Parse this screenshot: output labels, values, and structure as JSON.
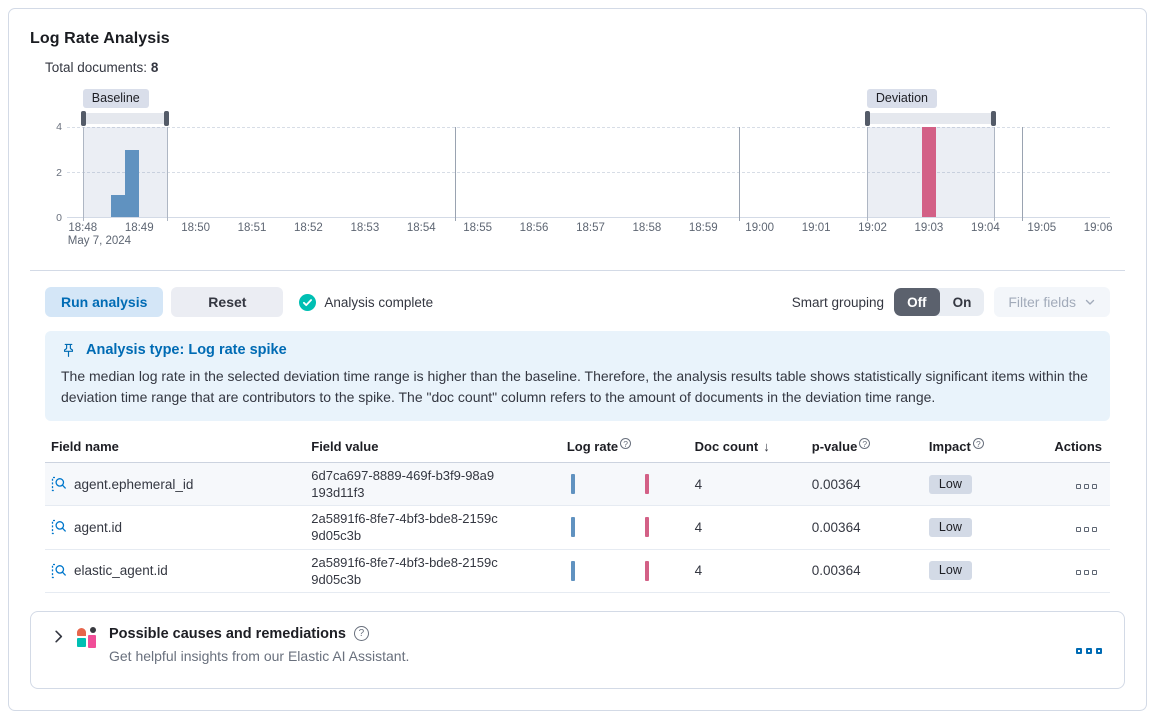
{
  "panel": {
    "title": "Log Rate Analysis",
    "total_documents_label": "Total documents:",
    "total_documents_value": "8"
  },
  "chart_data": {
    "type": "bar",
    "x_tick_labels": [
      "18:48",
      "18:49",
      "18:50",
      "18:51",
      "18:52",
      "18:53",
      "18:54",
      "18:55",
      "18:56",
      "18:57",
      "18:58",
      "18:59",
      "19:00",
      "19:01",
      "19:02",
      "19:03",
      "19:04",
      "19:05",
      "19:06"
    ],
    "x_date_label": "May 7, 2024",
    "ylim": [
      0,
      4
    ],
    "y_ticks": [
      0,
      2,
      4
    ],
    "bar_width_min": 0.25,
    "bars": [
      {
        "time": "18:48:30",
        "t_min": 0.5,
        "value": 1,
        "series": "baseline"
      },
      {
        "time": "18:48:45",
        "t_min": 0.75,
        "value": 3,
        "series": "baseline"
      },
      {
        "time": "19:03:00",
        "t_min": 14.88,
        "value": 4,
        "series": "deviation"
      }
    ],
    "windows": [
      {
        "label": "Baseline",
        "from_min": 0.0,
        "to_min": 1.5
      },
      {
        "label": "Deviation",
        "from_min": 13.9,
        "to_min": 16.15
      }
    ],
    "vertical_gridlines_min": [
      6.6,
      11.63,
      16.65
    ],
    "grid": "dashed-horizontal",
    "legend": "none",
    "colors": {
      "baseline": "#6092C0",
      "deviation": "#D36086"
    }
  },
  "controls": {
    "run_label": "Run analysis",
    "reset_label": "Reset",
    "status_label": "Analysis complete",
    "smart_grouping_label": "Smart grouping",
    "group_off": "Off",
    "group_on": "On",
    "filter_fields_label": "Filter fields"
  },
  "callout": {
    "title": "Analysis type: Log rate spike",
    "body": "The median log rate in the selected deviation time range is higher than the baseline. Therefore, the analysis results table shows statistically significant items within the deviation time range that are contributors to the spike. The \"doc count\" column refers to the amount of documents in the deviation time range."
  },
  "table": {
    "columns": {
      "field_name": "Field name",
      "field_value": "Field value",
      "log_rate": "Log rate",
      "doc_count": "Doc count",
      "p_value": "p-value",
      "impact": "Impact",
      "actions": "Actions"
    },
    "sort": {
      "column": "doc_count",
      "direction": "desc"
    },
    "rows": [
      {
        "field_name": "agent.ephemeral_id",
        "field_value": "6d7ca697-8889-469f-b3f9-98a9193d11f3",
        "doc_count": "4",
        "p_value": "0.00364",
        "impact": "Low"
      },
      {
        "field_name": "agent.id",
        "field_value": "2a5891f6-8fe7-4bf3-bde8-2159c9d05c3b",
        "doc_count": "4",
        "p_value": "0.00364",
        "impact": "Low"
      },
      {
        "field_name": "elastic_agent.id",
        "field_value": "2a5891f6-8fe7-4bf3-bde8-2159c9d05c3b",
        "doc_count": "4",
        "p_value": "0.00364",
        "impact": "Low"
      }
    ]
  },
  "insights": {
    "title": "Possible causes and remediations",
    "subtitle": "Get helpful insights from our Elastic AI Assistant."
  },
  "icons": {
    "sort_desc": "↓",
    "info": "?",
    "help": "?"
  },
  "colors": {
    "primary_blue": "#006bb4",
    "success_teal": "#00BFB3",
    "bar_blue": "#6092C0",
    "bar_pink": "#D36086",
    "badge_bg": "#D3DAE6",
    "callout_bg": "#E9F3FB",
    "border": "#D3DAE6"
  }
}
